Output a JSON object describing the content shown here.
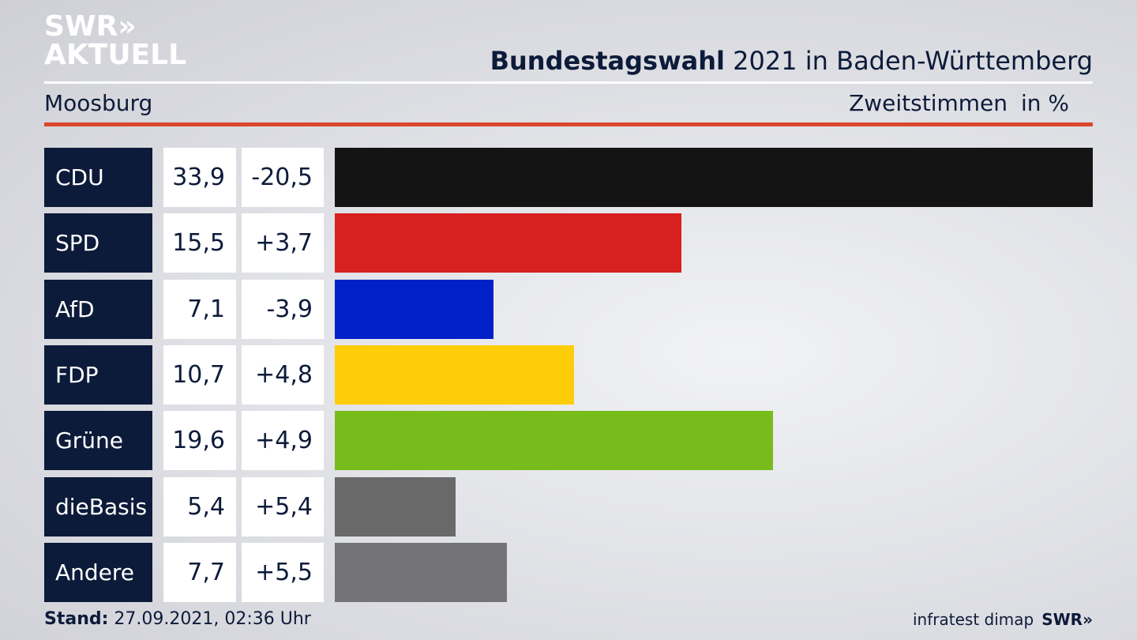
{
  "header": {
    "logo_line1": "SWR»",
    "logo_line2": "AKTUELL",
    "title_bold": "Bundestagswahl",
    "title_rest": " 2021 in Baden-Württemberg",
    "location": "Moosburg",
    "metric": "Zweitstimmen",
    "unit": "in %"
  },
  "chart_data": {
    "type": "bar",
    "orientation": "horizontal",
    "title": "Bundestagswahl 2021 in Baden-Württemberg",
    "subtitle": "Moosburg",
    "xlabel": "Zweitstimmen in %",
    "xlim": [
      0,
      33.9
    ],
    "rows": [
      {
        "party": "CDU",
        "value": 33.9,
        "value_label": "33,9",
        "change": -20.5,
        "change_label": "-20,5",
        "color": "#141414"
      },
      {
        "party": "SPD",
        "value": 15.5,
        "value_label": "15,5",
        "change": 3.7,
        "change_label": "+3,7",
        "color": "#d72020"
      },
      {
        "party": "AfD",
        "value": 7.1,
        "value_label": "7,1",
        "change": -3.9,
        "change_label": "-3,9",
        "color": "#0021c8"
      },
      {
        "party": "FDP",
        "value": 10.7,
        "value_label": "10,7",
        "change": 4.8,
        "change_label": "+4,8",
        "color": "#fecd0a"
      },
      {
        "party": "Grüne",
        "value": 19.6,
        "value_label": "19,6",
        "change": 4.9,
        "change_label": "+4,9",
        "color": "#78bc1c"
      },
      {
        "party": "dieBasis",
        "value": 5.4,
        "value_label": "5,4",
        "change": 5.4,
        "change_label": "+5,4",
        "color": "#696969"
      },
      {
        "party": "Andere",
        "value": 7.7,
        "value_label": "7,7",
        "change": 5.5,
        "change_label": "+5,5",
        "color": "#747476"
      }
    ]
  },
  "footer": {
    "stand_label": "Stand:",
    "stand_value": " 27.09.2021, 02:36 Uhr",
    "source": "infratest dimap",
    "brand": "SWR»"
  }
}
